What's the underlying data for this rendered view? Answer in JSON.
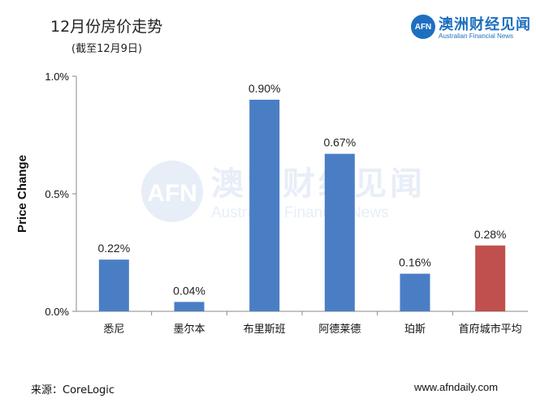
{
  "header": {
    "title": "12月份房价走势",
    "subtitle": "(截至12月9日)"
  },
  "logo": {
    "mark": "AFN",
    "name_cn": "澳洲财经见闻",
    "name_en": "Australian Financial News"
  },
  "watermark": {
    "mark": "AFN",
    "name_cn": "澳洲财经见闻",
    "name_en": "Australian Financial News"
  },
  "chart_data": {
    "type": "bar",
    "title": "12月份房价走势",
    "subtitle": "(截至12月9日)",
    "ylabel": "Price Change",
    "xlabel": "",
    "ylim": [
      0,
      1.0
    ],
    "yticks": [
      "0.0%",
      "0.5%",
      "1.0%"
    ],
    "categories": [
      "悉尼",
      "墨尔本",
      "布里斯班",
      "阿德莱德",
      "珀斯",
      "首府城市平均"
    ],
    "values": [
      0.22,
      0.04,
      0.9,
      0.67,
      0.16,
      0.28
    ],
    "data_labels": [
      "0.22%",
      "0.04%",
      "0.90%",
      "0.67%",
      "0.16%",
      "0.28%"
    ],
    "colors": [
      "#4a7ec4",
      "#4a7ec4",
      "#4a7ec4",
      "#4a7ec4",
      "#4a7ec4",
      "#c0504d"
    ],
    "grid": false,
    "legend": "none"
  },
  "footer": {
    "source": "来源：CoreLogic",
    "website": "www.afndaily.com"
  }
}
